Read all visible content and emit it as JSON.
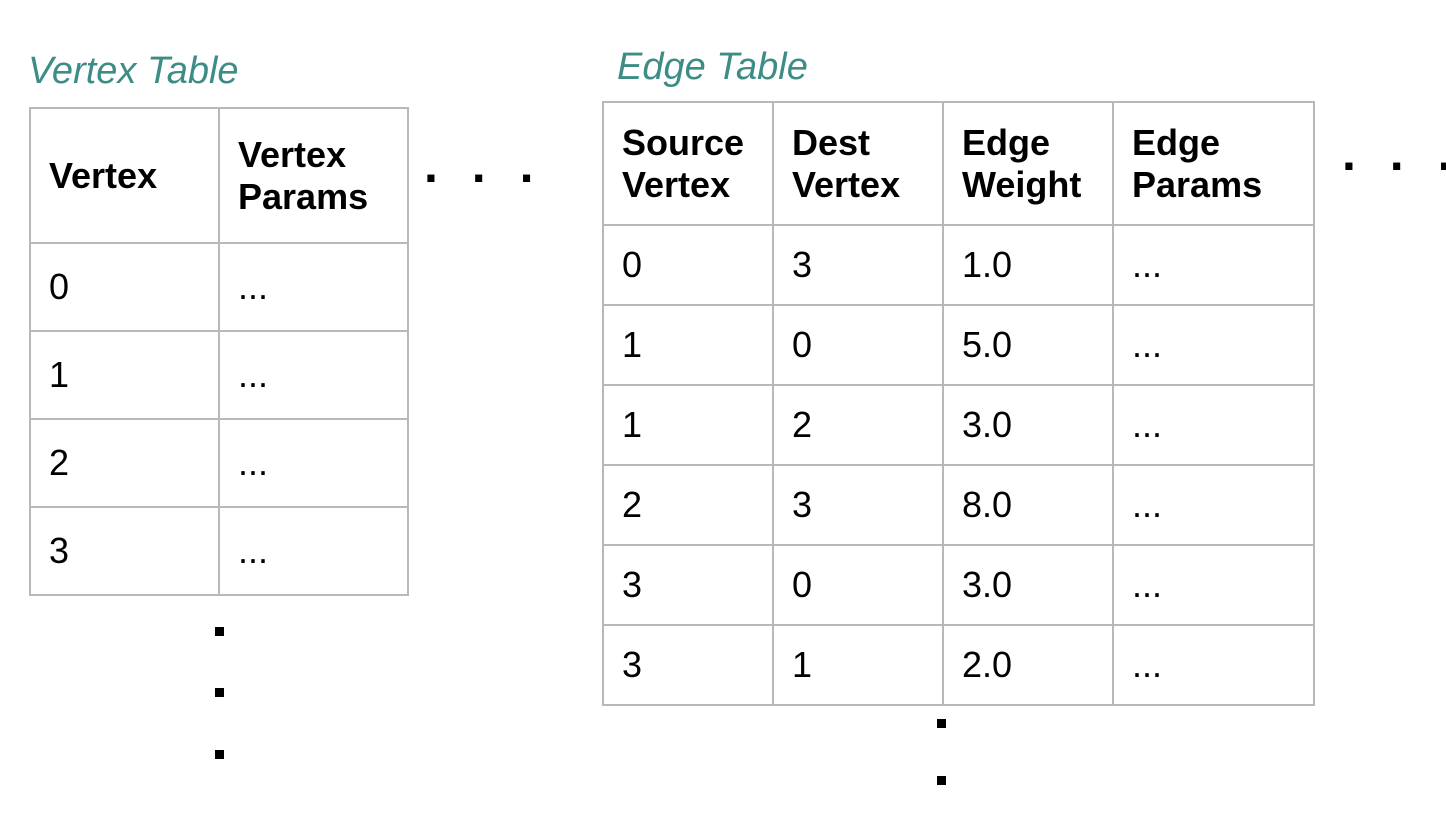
{
  "vertex_table": {
    "title": "Vertex Table",
    "headers": [
      "Vertex",
      "Vertex Params"
    ],
    "rows": [
      [
        "0",
        "..."
      ],
      [
        "1",
        "..."
      ],
      [
        "2",
        "..."
      ],
      [
        "3",
        "..."
      ]
    ],
    "continuation_right": ". . ."
  },
  "edge_table": {
    "title": "Edge Table",
    "headers": [
      "Source Vertex",
      "Dest Vertex",
      "Edge Weight",
      "Edge Params"
    ],
    "rows": [
      [
        "0",
        "3",
        "1.0",
        "..."
      ],
      [
        "1",
        "0",
        "5.0",
        "..."
      ],
      [
        "1",
        "2",
        "3.0",
        "..."
      ],
      [
        "2",
        "3",
        "8.0",
        "..."
      ],
      [
        "3",
        "0",
        "3.0",
        "..."
      ],
      [
        "3",
        "1",
        "2.0",
        "..."
      ]
    ],
    "continuation_right": ". . ."
  },
  "colors": {
    "title": "#3d8c85",
    "grid_line": "#b8b8b8",
    "text": "#000000"
  }
}
